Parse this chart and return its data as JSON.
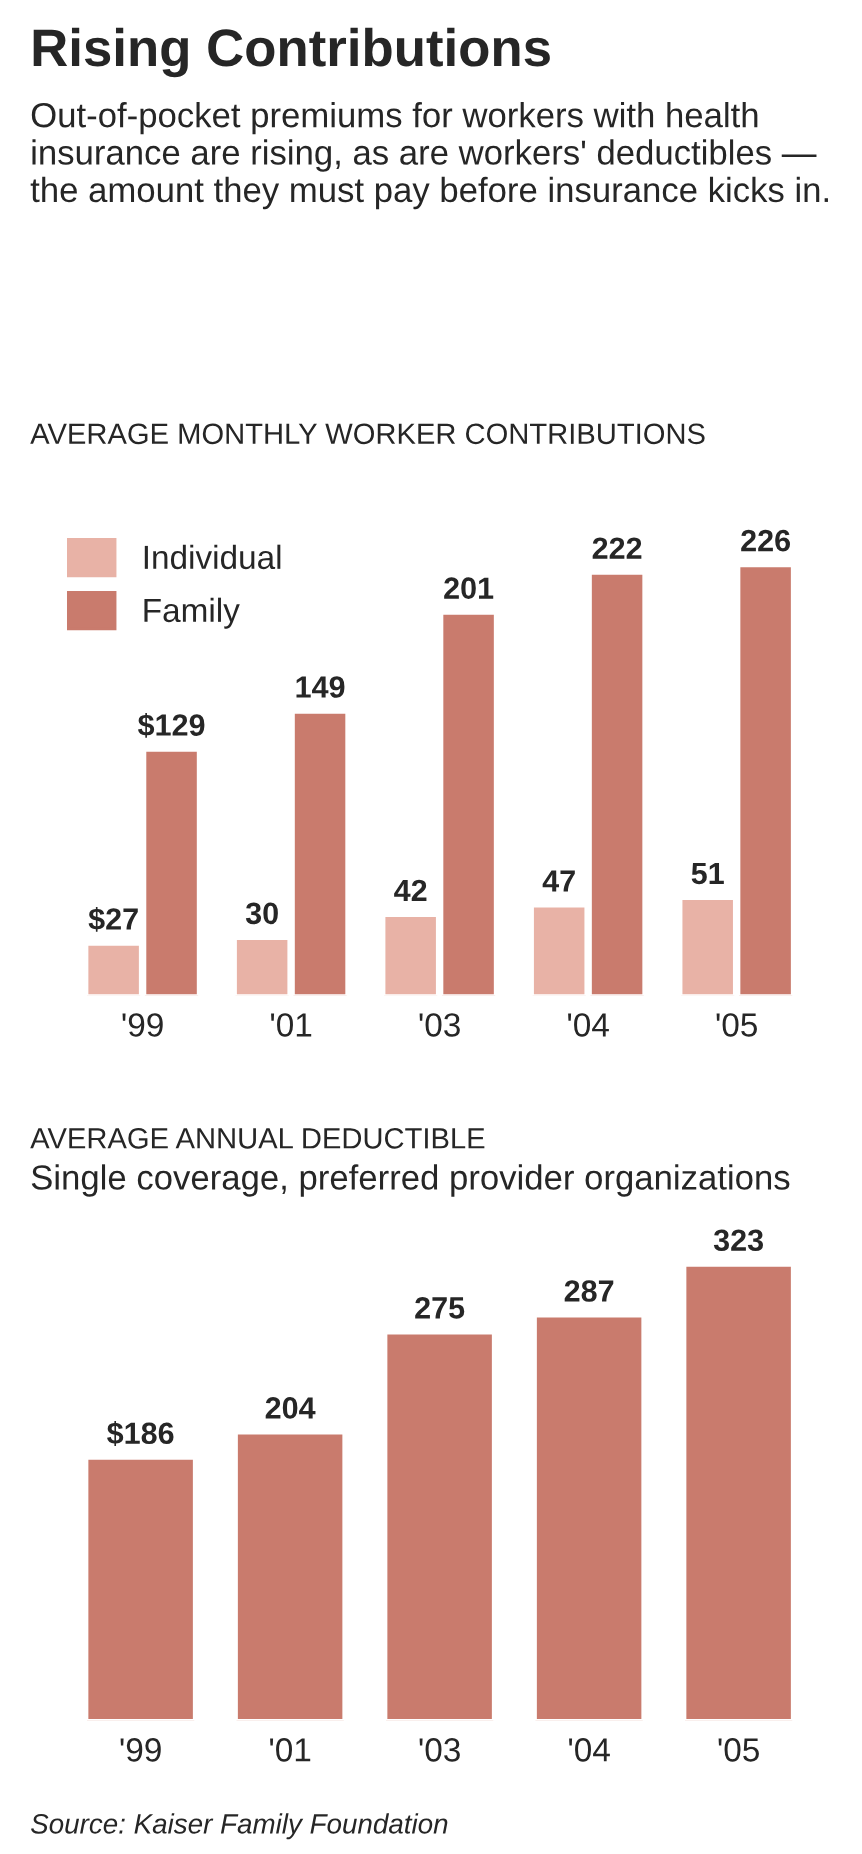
{
  "chart_data": [
    {
      "type": "bar",
      "title": "Rising Contributions",
      "subtitle": "Out-of-pocket premiums for workers with health insurance are rising, as are workers' deductibles — the amount they must pay before insurance kicks in.",
      "annotations": [
        "AVERAGE MONTHLY WORKER CONTRIBUTIONS"
      ],
      "categories": [
        "'99",
        "'01",
        "'03",
        "'04",
        "'05"
      ],
      "legend": "top left",
      "series": [
        {
          "name": "Individual",
          "color": "#e8b2a6",
          "values": [
            27,
            30,
            42,
            47,
            51
          ],
          "value_labels": [
            "$27",
            "30",
            "42",
            "47",
            "51"
          ]
        },
        {
          "name": "Family",
          "color": "#c97b6d",
          "values": [
            129,
            149,
            201,
            222,
            226
          ],
          "value_labels": [
            "$129",
            "149",
            "201",
            "222",
            "226"
          ]
        }
      ]
    },
    {
      "type": "bar",
      "title": "AVERAGE ANNUAL DEDUCTIBLE",
      "subtitle": "Single coverage, preferred provider organizations",
      "annotations": [
        "Source: Kaiser Family Foundation"
      ],
      "categories": [
        "'99",
        "'01",
        "'03",
        "'04",
        "'05"
      ],
      "series": [
        {
          "color": "#c97b6d",
          "values": [
            186,
            204,
            275,
            287,
            323
          ],
          "value_labels": [
            "$186",
            "204",
            "275",
            "287",
            "323"
          ]
        }
      ]
    }
  ]
}
